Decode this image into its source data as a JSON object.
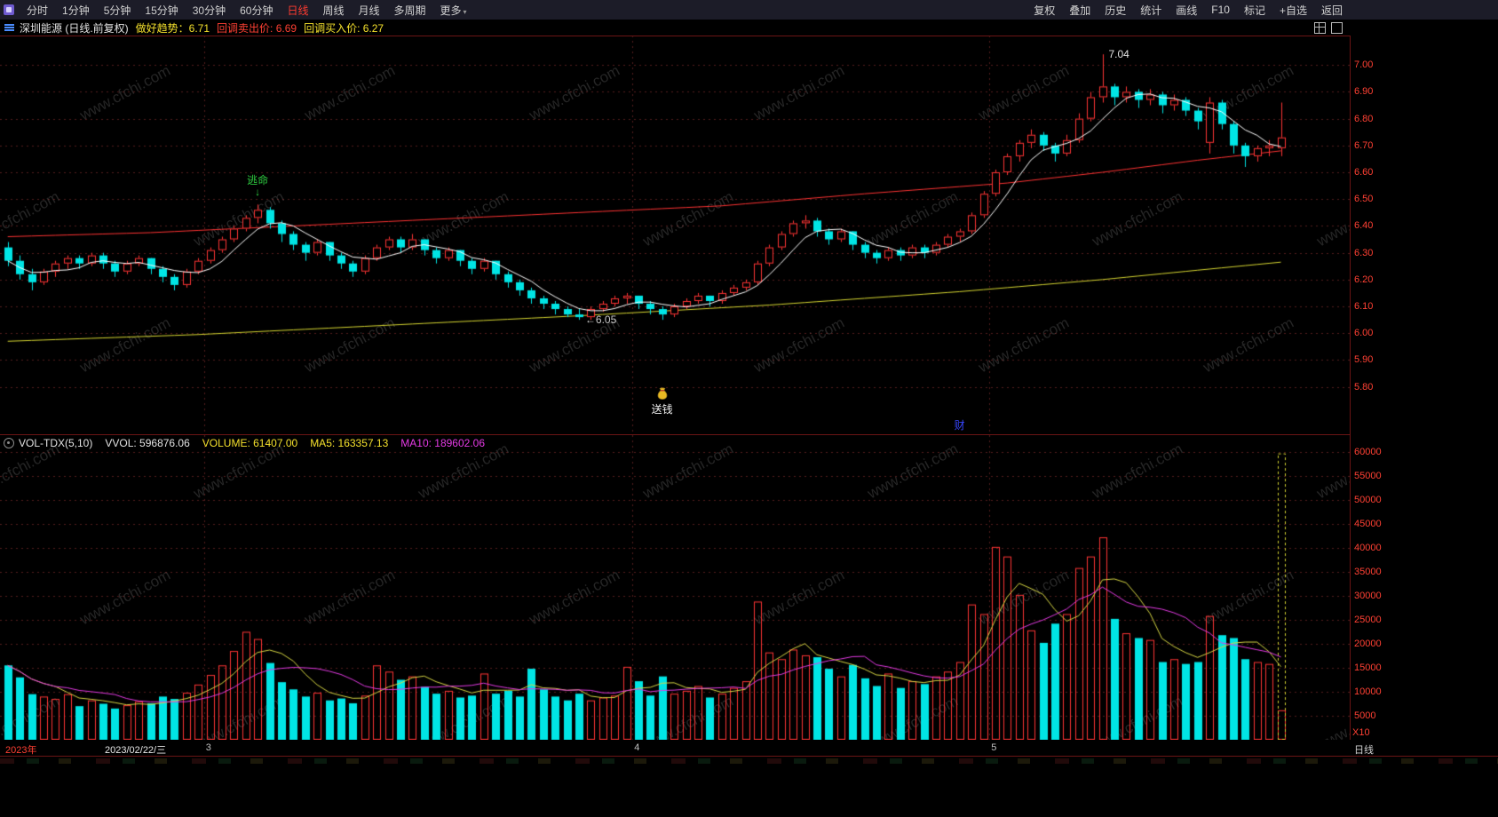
{
  "menubar": {
    "left": [
      {
        "name": "time-sharing",
        "label": "分时"
      },
      {
        "name": "1min",
        "label": "1分钟"
      },
      {
        "name": "5min",
        "label": "5分钟"
      },
      {
        "name": "15min",
        "label": "15分钟"
      },
      {
        "name": "30min",
        "label": "30分钟"
      },
      {
        "name": "60min",
        "label": "60分钟"
      },
      {
        "name": "daily",
        "label": "日线",
        "active": true
      },
      {
        "name": "weekly",
        "label": "周线"
      },
      {
        "name": "monthly",
        "label": "月线"
      },
      {
        "name": "multi-period",
        "label": "多周期"
      },
      {
        "name": "more",
        "label": "更多",
        "caret": true
      }
    ],
    "right": [
      {
        "name": "adjust",
        "label": "复权"
      },
      {
        "name": "overlay",
        "label": "叠加"
      },
      {
        "name": "history",
        "label": "历史"
      },
      {
        "name": "statistics",
        "label": "统计"
      },
      {
        "name": "draw-line",
        "label": "画线"
      },
      {
        "name": "f10",
        "label": "F10"
      },
      {
        "name": "mark",
        "label": "标记"
      },
      {
        "name": "add-watchlist",
        "label": "+自选"
      },
      {
        "name": "back",
        "label": "返回"
      }
    ]
  },
  "infobar": {
    "stock": "深圳能源 (日线.前复权)",
    "trend": "做好趋势：6.71",
    "sell": "回调卖出价: 6.69",
    "buy": "回调买入价: 6.27"
  },
  "vol_header": {
    "indicator": "VOL-TDX(5,10)",
    "vvol": "VVOL: 596876.06",
    "volume": "VOLUME: 61407.00",
    "ma5": "MA5: 163357.13",
    "ma10": "MA10: 189602.06"
  },
  "date_axis": {
    "year": "2023年",
    "date": "2023/02/22/三",
    "months": [
      {
        "label": "3",
        "boundary": 17
      },
      {
        "label": "4",
        "boundary": 53
      },
      {
        "label": "5",
        "boundary": 83
      }
    ],
    "period": "日线",
    "vol_unit": "X10"
  },
  "watermark": "www.cfchi.com",
  "colors": {
    "up": "#ff3434",
    "down": "#00e5e5",
    "ma_white": "#ffffff",
    "ma_red": "#ff3333",
    "ma_yellow": "#d6d631",
    "vol_ma5": "#d6d643",
    "vol_ma10": "#e43ae4",
    "axis_text": "#ff4033",
    "grid": "rgba(170,60,60,0.5)",
    "frame": "#6b1414"
  },
  "chart_data": [
    {
      "type": "candlestick",
      "name": "price",
      "title": "深圳能源 日线 前复权",
      "ylim": [
        5.62,
        7.11
      ],
      "yticks": [
        7.0,
        6.9,
        6.8,
        6.7,
        6.6,
        6.5,
        6.4,
        6.3,
        6.2,
        6.1,
        6.0,
        5.9,
        5.8
      ],
      "candles": [
        [
          6.32,
          6.34,
          6.25,
          6.27
        ],
        [
          6.27,
          6.29,
          6.2,
          6.22
        ],
        [
          6.22,
          6.24,
          6.16,
          6.19
        ],
        [
          6.19,
          6.24,
          6.18,
          6.23
        ],
        [
          6.23,
          6.27,
          6.21,
          6.26
        ],
        [
          6.26,
          6.29,
          6.24,
          6.28
        ],
        [
          6.28,
          6.29,
          6.24,
          6.26
        ],
        [
          6.26,
          6.3,
          6.25,
          6.29
        ],
        [
          6.29,
          6.3,
          6.24,
          6.26
        ],
        [
          6.26,
          6.27,
          6.21,
          6.23
        ],
        [
          6.23,
          6.27,
          6.22,
          6.26
        ],
        [
          6.26,
          6.29,
          6.25,
          6.28
        ],
        [
          6.28,
          6.28,
          6.22,
          6.24
        ],
        [
          6.24,
          6.25,
          6.19,
          6.21
        ],
        [
          6.21,
          6.22,
          6.16,
          6.18
        ],
        [
          6.18,
          6.24,
          6.17,
          6.23
        ],
        [
          6.23,
          6.28,
          6.22,
          6.27
        ],
        [
          6.27,
          6.32,
          6.26,
          6.31
        ],
        [
          6.31,
          6.36,
          6.3,
          6.35
        ],
        [
          6.35,
          6.4,
          6.34,
          6.39
        ],
        [
          6.39,
          6.44,
          6.38,
          6.43
        ],
        [
          6.43,
          6.48,
          6.41,
          6.46
        ],
        [
          6.46,
          6.47,
          6.39,
          6.41
        ],
        [
          6.41,
          6.42,
          6.34,
          6.37
        ],
        [
          6.37,
          6.38,
          6.31,
          6.33
        ],
        [
          6.33,
          6.34,
          6.27,
          6.3
        ],
        [
          6.3,
          6.35,
          6.29,
          6.34
        ],
        [
          6.34,
          6.34,
          6.27,
          6.29
        ],
        [
          6.29,
          6.3,
          6.24,
          6.26
        ],
        [
          6.26,
          6.27,
          6.21,
          6.23
        ],
        [
          6.23,
          6.29,
          6.22,
          6.28
        ],
        [
          6.28,
          6.33,
          6.27,
          6.32
        ],
        [
          6.32,
          6.36,
          6.31,
          6.35
        ],
        [
          6.35,
          6.36,
          6.3,
          6.32
        ],
        [
          6.32,
          6.37,
          6.31,
          6.35
        ],
        [
          6.35,
          6.35,
          6.29,
          6.31
        ],
        [
          6.31,
          6.32,
          6.26,
          6.28
        ],
        [
          6.28,
          6.32,
          6.27,
          6.31
        ],
        [
          6.31,
          6.31,
          6.25,
          6.27
        ],
        [
          6.27,
          6.28,
          6.22,
          6.24
        ],
        [
          6.24,
          6.28,
          6.23,
          6.27
        ],
        [
          6.27,
          6.27,
          6.2,
          6.22
        ],
        [
          6.22,
          6.23,
          6.17,
          6.19
        ],
        [
          6.19,
          6.2,
          6.14,
          6.16
        ],
        [
          6.16,
          6.17,
          6.11,
          6.13
        ],
        [
          6.13,
          6.14,
          6.09,
          6.11
        ],
        [
          6.11,
          6.12,
          6.07,
          6.09
        ],
        [
          6.09,
          6.1,
          6.06,
          6.07
        ],
        [
          6.07,
          6.09,
          6.05,
          6.06
        ],
        [
          6.06,
          6.1,
          6.05,
          6.09
        ],
        [
          6.09,
          6.12,
          6.08,
          6.11
        ],
        [
          6.11,
          6.14,
          6.1,
          6.13
        ],
        [
          6.13,
          6.15,
          6.11,
          6.14
        ],
        [
          6.14,
          6.14,
          6.09,
          6.11
        ],
        [
          6.11,
          6.12,
          6.07,
          6.09
        ],
        [
          6.09,
          6.1,
          6.05,
          6.07
        ],
        [
          6.07,
          6.11,
          6.06,
          6.1
        ],
        [
          6.1,
          6.13,
          6.09,
          6.12
        ],
        [
          6.12,
          6.15,
          6.11,
          6.14
        ],
        [
          6.14,
          6.14,
          6.1,
          6.12
        ],
        [
          6.12,
          6.16,
          6.11,
          6.15
        ],
        [
          6.15,
          6.18,
          6.14,
          6.17
        ],
        [
          6.17,
          6.2,
          6.16,
          6.19
        ],
        [
          6.19,
          6.27,
          6.18,
          6.26
        ],
        [
          6.26,
          6.33,
          6.25,
          6.32
        ],
        [
          6.32,
          6.38,
          6.31,
          6.37
        ],
        [
          6.37,
          6.42,
          6.36,
          6.41
        ],
        [
          6.41,
          6.44,
          6.39,
          6.42
        ],
        [
          6.42,
          6.43,
          6.36,
          6.38
        ],
        [
          6.38,
          6.39,
          6.33,
          6.35
        ],
        [
          6.35,
          6.39,
          6.34,
          6.38
        ],
        [
          6.38,
          6.38,
          6.31,
          6.33
        ],
        [
          6.33,
          6.34,
          6.28,
          6.3
        ],
        [
          6.3,
          6.31,
          6.26,
          6.28
        ],
        [
          6.28,
          6.32,
          6.27,
          6.31
        ],
        [
          6.31,
          6.32,
          6.27,
          6.29
        ],
        [
          6.29,
          6.33,
          6.28,
          6.32
        ],
        [
          6.32,
          6.33,
          6.28,
          6.3
        ],
        [
          6.3,
          6.34,
          6.29,
          6.33
        ],
        [
          6.33,
          6.37,
          6.32,
          6.36
        ],
        [
          6.36,
          6.39,
          6.34,
          6.38
        ],
        [
          6.38,
          6.45,
          6.37,
          6.44
        ],
        [
          6.44,
          6.53,
          6.43,
          6.52
        ],
        [
          6.52,
          6.61,
          6.51,
          6.6
        ],
        [
          6.6,
          6.67,
          6.59,
          6.66
        ],
        [
          6.66,
          6.72,
          6.64,
          6.71
        ],
        [
          6.71,
          6.76,
          6.69,
          6.74
        ],
        [
          6.74,
          6.75,
          6.68,
          6.7
        ],
        [
          6.7,
          6.71,
          6.64,
          6.67
        ],
        [
          6.67,
          6.74,
          6.66,
          6.72
        ],
        [
          6.72,
          6.82,
          6.71,
          6.8
        ],
        [
          6.8,
          6.9,
          6.79,
          6.88
        ],
        [
          6.88,
          7.04,
          6.86,
          6.92
        ],
        [
          6.92,
          6.93,
          6.85,
          6.88
        ],
        [
          6.88,
          6.92,
          6.86,
          6.9
        ],
        [
          6.9,
          6.91,
          6.84,
          6.87
        ],
        [
          6.87,
          6.91,
          6.85,
          6.89
        ],
        [
          6.89,
          6.9,
          6.82,
          6.85
        ],
        [
          6.85,
          6.89,
          6.83,
          6.87
        ],
        [
          6.87,
          6.88,
          6.81,
          6.83
        ],
        [
          6.83,
          6.84,
          6.76,
          6.79
        ],
        [
          6.71,
          6.88,
          6.67,
          6.86
        ],
        [
          6.86,
          6.87,
          6.76,
          6.78
        ],
        [
          6.78,
          6.79,
          6.67,
          6.7
        ],
        [
          6.7,
          6.71,
          6.62,
          6.66
        ],
        [
          6.66,
          6.7,
          6.64,
          6.69
        ],
        [
          6.69,
          6.72,
          6.66,
          6.7
        ],
        [
          6.69,
          6.86,
          6.66,
          6.73
        ]
      ],
      "ma_red_keypoints": [
        [
          0,
          6.36
        ],
        [
          12,
          6.375
        ],
        [
          24,
          6.4
        ],
        [
          36,
          6.425
        ],
        [
          48,
          6.45
        ],
        [
          60,
          6.475
        ],
        [
          72,
          6.52
        ],
        [
          84,
          6.56
        ],
        [
          92,
          6.6
        ],
        [
          100,
          6.645
        ],
        [
          107,
          6.68
        ]
      ],
      "ma_yellow_keypoints": [
        [
          0,
          5.97
        ],
        [
          16,
          5.995
        ],
        [
          32,
          6.03
        ],
        [
          48,
          6.065
        ],
        [
          64,
          6.105
        ],
        [
          80,
          6.155
        ],
        [
          92,
          6.2
        ],
        [
          100,
          6.235
        ],
        [
          107,
          6.265
        ]
      ],
      "annotations": [
        {
          "name": "escape-label",
          "text": "逃命",
          "index": 21,
          "price": 6.48,
          "color": "#2ecc40",
          "arrow": "down"
        },
        {
          "name": "low-price-label",
          "text": "←6.05",
          "index": 48,
          "price": 6.05,
          "color": "#c8c8c8",
          "anchor": "right"
        },
        {
          "name": "high-price-label",
          "text": "7.04",
          "index": 92,
          "price": 7.04,
          "color": "#e0e0e0",
          "anchor": "right"
        },
        {
          "name": "songqian-label",
          "text": "送钱",
          "index": 55,
          "price": 5.69,
          "color": "#f0f0f0",
          "icon": "money-bag"
        },
        {
          "name": "cai-label",
          "text": "财",
          "index": 80,
          "price": 5.665,
          "color": "#3746ff"
        }
      ]
    },
    {
      "type": "bar",
      "name": "volume",
      "ylim": [
        0,
        63500
      ],
      "yticks": [
        60000,
        55000,
        50000,
        45000,
        40000,
        35000,
        30000,
        25000,
        20000,
        15000,
        10000,
        5000
      ],
      "values": [
        15500,
        13000,
        9500,
        9000,
        8500,
        9500,
        7000,
        8200,
        7500,
        6500,
        7200,
        8000,
        7600,
        9000,
        8500,
        9800,
        11500,
        13500,
        15500,
        18500,
        22500,
        21000,
        16000,
        12000,
        10500,
        9000,
        9800,
        8200,
        8600,
        7600,
        9200,
        15500,
        14200,
        12500,
        13200,
        11000,
        9600,
        10200,
        8800,
        9200,
        13800,
        9600,
        10200,
        9000,
        14800,
        10500,
        9000,
        8200,
        9600,
        8200,
        8800,
        9200,
        15200,
        12200,
        9200,
        13200,
        9600,
        10200,
        11200,
        8800,
        9600,
        10800,
        12200,
        28800,
        18200,
        16800,
        18800,
        17600,
        17200,
        14800,
        13200,
        15600,
        12800,
        11200,
        13800,
        10800,
        12200,
        11600,
        13200,
        14200,
        16200,
        28200,
        26200,
        40200,
        38200,
        30200,
        22800,
        20200,
        24200,
        26200,
        35800,
        38200,
        42200,
        25200,
        22200,
        21200,
        20800,
        16200,
        16800,
        15800,
        16200,
        25800,
        21800,
        21200,
        16800,
        16200,
        15800,
        6141
      ],
      "forecast": {
        "index": 107,
        "value": 59688,
        "style": "dashed-yellow"
      }
    }
  ]
}
